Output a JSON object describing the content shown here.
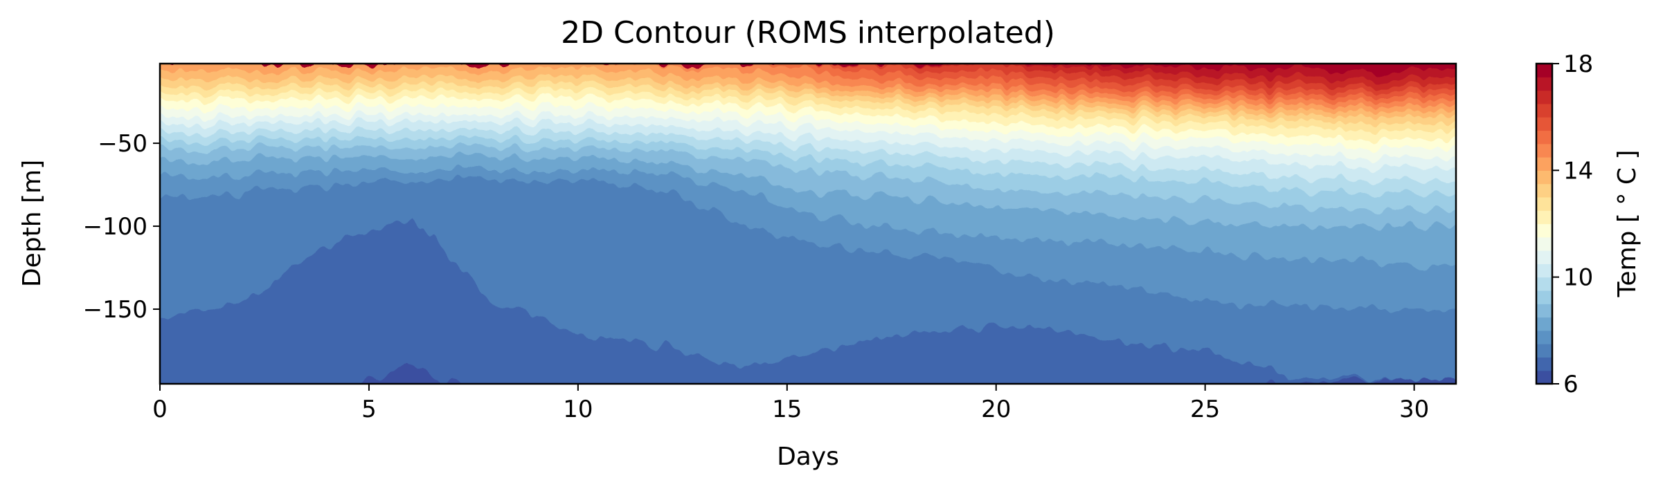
{
  "chart_data": {
    "type": "heatmap",
    "title": "2D Contour (ROMS interpolated)",
    "xlabel": "Days",
    "ylabel": "Depth [m]",
    "xlim": [
      0,
      31
    ],
    "ylim": [
      -195,
      -2
    ],
    "x_ticks": [
      0,
      5,
      10,
      15,
      20,
      25,
      30
    ],
    "y_ticks": [
      -50,
      -100,
      -150
    ],
    "colorbar": {
      "label": "Temp [$^\\circ C$]",
      "label_display": "Temp [ ° C ]",
      "range": [
        6,
        18
      ],
      "ticks": [
        6,
        10,
        14,
        18
      ],
      "levels": [
        6,
        6.5,
        7,
        7.5,
        8,
        8.5,
        9,
        9.5,
        10,
        10.5,
        11,
        11.5,
        12,
        12.5,
        13,
        13.5,
        14,
        14.5,
        15,
        15.5,
        16,
        16.5,
        17,
        17.5,
        18
      ],
      "colors": [
        "#3b4fa0",
        "#4166ad",
        "#4e7fb9",
        "#5b92c4",
        "#6ea6cf",
        "#86badb",
        "#9ccde5",
        "#b4dcec",
        "#cde9f2",
        "#e2f3f3",
        "#f2faeb",
        "#fefed7",
        "#fff2b5",
        "#fee39a",
        "#fdd084",
        "#fdba6f",
        "#fca25f",
        "#f88751",
        "#f16e43",
        "#e65637",
        "#d9412e",
        "#c92a27",
        "#b91526",
        "#a50026"
      ]
    },
    "isotherm_depths": {
      "days": [
        0,
        2,
        4,
        6,
        8,
        10,
        12,
        14,
        15.5,
        17,
        19,
        21,
        23,
        25,
        27,
        29,
        31
      ],
      "t6_5": [
        -201,
        -201,
        -201,
        -185,
        -201,
        -201,
        -201,
        -201,
        -201,
        -201,
        -201,
        -201,
        -201,
        -201,
        -193,
        -193,
        -193
      ],
      "t7": [
        -160,
        -145,
        -112,
        -95,
        -145,
        -165,
        -172,
        -185,
        -178,
        -168,
        -162,
        -160,
        -170,
        -175,
        -190,
        -192,
        -195
      ],
      "t7_5": [
        -85,
        -80,
        -75,
        -72,
        -72,
        -72,
        -78,
        -100,
        -110,
        -115,
        -120,
        -130,
        -135,
        -145,
        -148,
        -150,
        -150
      ],
      "t8": [
        -70,
        -70,
        -66,
        -66,
        -66,
        -66,
        -68,
        -80,
        -92,
        -100,
        -105,
        -108,
        -110,
        -115,
        -120,
        -122,
        -125
      ],
      "t8_5": [
        -62,
        -60,
        -58,
        -58,
        -58,
        -58,
        -62,
        -70,
        -78,
        -82,
        -86,
        -90,
        -95,
        -98,
        -100,
        -100,
        -100
      ],
      "t9": [
        -55,
        -53,
        -52,
        -52,
        -52,
        -52,
        -55,
        -60,
        -65,
        -70,
        -74,
        -80,
        -82,
        -85,
        -88,
        -90,
        -90
      ],
      "t9_5": [
        -50,
        -48,
        -47,
        -47,
        -47,
        -47,
        -50,
        -54,
        -58,
        -62,
        -65,
        -70,
        -72,
        -75,
        -78,
        -80,
        -80
      ],
      "t10": [
        -45,
        -43,
        -42,
        -42,
        -42,
        -42,
        -45,
        -48,
        -52,
        -55,
        -58,
        -62,
        -65,
        -68,
        -70,
        -72,
        -72
      ],
      "t10_5": [
        -40,
        -38,
        -37,
        -37,
        -37,
        -37,
        -40,
        -43,
        -46,
        -49,
        -52,
        -55,
        -58,
        -60,
        -62,
        -64,
        -64
      ],
      "t11": [
        -35,
        -34,
        -33,
        -33,
        -33,
        -33,
        -35,
        -37,
        -40,
        -43,
        -46,
        -49,
        -52,
        -54,
        -56,
        -58,
        -58
      ],
      "t11_5": [
        -30,
        -29,
        -28,
        -28,
        -28,
        -28,
        -30,
        -32,
        -35,
        -38,
        -41,
        -44,
        -46,
        -48,
        -50,
        -52,
        -52
      ],
      "t12": [
        -25,
        -24,
        -23,
        -23,
        -23,
        -23,
        -25,
        -27,
        -30,
        -33,
        -36,
        -39,
        -41,
        -43,
        -45,
        -47,
        -47
      ],
      "t12_5": [
        -21,
        -20,
        -19,
        -19,
        -19,
        -19,
        -21,
        -23,
        -26,
        -29,
        -31,
        -34,
        -36,
        -38,
        -40,
        -42,
        -42
      ],
      "t13": [
        -17,
        -16,
        -15,
        -15,
        -15,
        -15,
        -17,
        -19,
        -22,
        -25,
        -27,
        -30,
        -32,
        -34,
        -36,
        -38,
        -38
      ],
      "t13_5": [
        -12,
        -12,
        -11,
        -11,
        -11,
        -11,
        -13,
        -16,
        -19,
        -22,
        -24,
        -27,
        -29,
        -31,
        -33,
        -34,
        -34
      ],
      "t14": [
        -7,
        -7,
        -6,
        -6,
        -6,
        -6,
        -8,
        -12,
        -16,
        -19,
        -21,
        -24,
        -26,
        -28,
        -30,
        -31,
        -31
      ],
      "t14_5": [
        -2,
        -2,
        -2,
        -2,
        -2,
        -2,
        -3,
        -6,
        -12,
        -16,
        -18,
        -21,
        -23,
        -25,
        -27,
        -28,
        -28
      ],
      "t15": [
        -2,
        -2,
        -2,
        -2,
        -2,
        -2,
        -2,
        -2,
        -6,
        -12,
        -15,
        -18,
        -20,
        -22,
        -24,
        -25,
        -25
      ],
      "t15_5": [
        -2,
        -2,
        -2,
        -2,
        -2,
        -2,
        -2,
        -2,
        -2,
        -7,
        -11,
        -14,
        -17,
        -19,
        -21,
        -22,
        -22
      ],
      "t16": [
        -2,
        -2,
        -2,
        -2,
        -2,
        -2,
        -2,
        -2,
        -2,
        -3,
        -7,
        -10,
        -13,
        -16,
        -18,
        -19,
        -19
      ],
      "t16_5": [
        -2,
        -2,
        -2,
        -2,
        -2,
        -2,
        -2,
        -2,
        -2,
        -2,
        -3,
        -6,
        -9,
        -12,
        -14,
        -16,
        -16
      ],
      "t17": [
        -2,
        -2,
        -2,
        -2,
        -2,
        -2,
        -2,
        -2,
        -2,
        -2,
        -2,
        -3,
        -5,
        -8,
        -10,
        -12,
        -12
      ],
      "t17_5": [
        -2,
        -2,
        -2,
        -2,
        -2,
        -2,
        -2,
        -2,
        -2,
        -2,
        -2,
        -2,
        -2,
        -3,
        -5,
        -7,
        -7
      ]
    }
  }
}
